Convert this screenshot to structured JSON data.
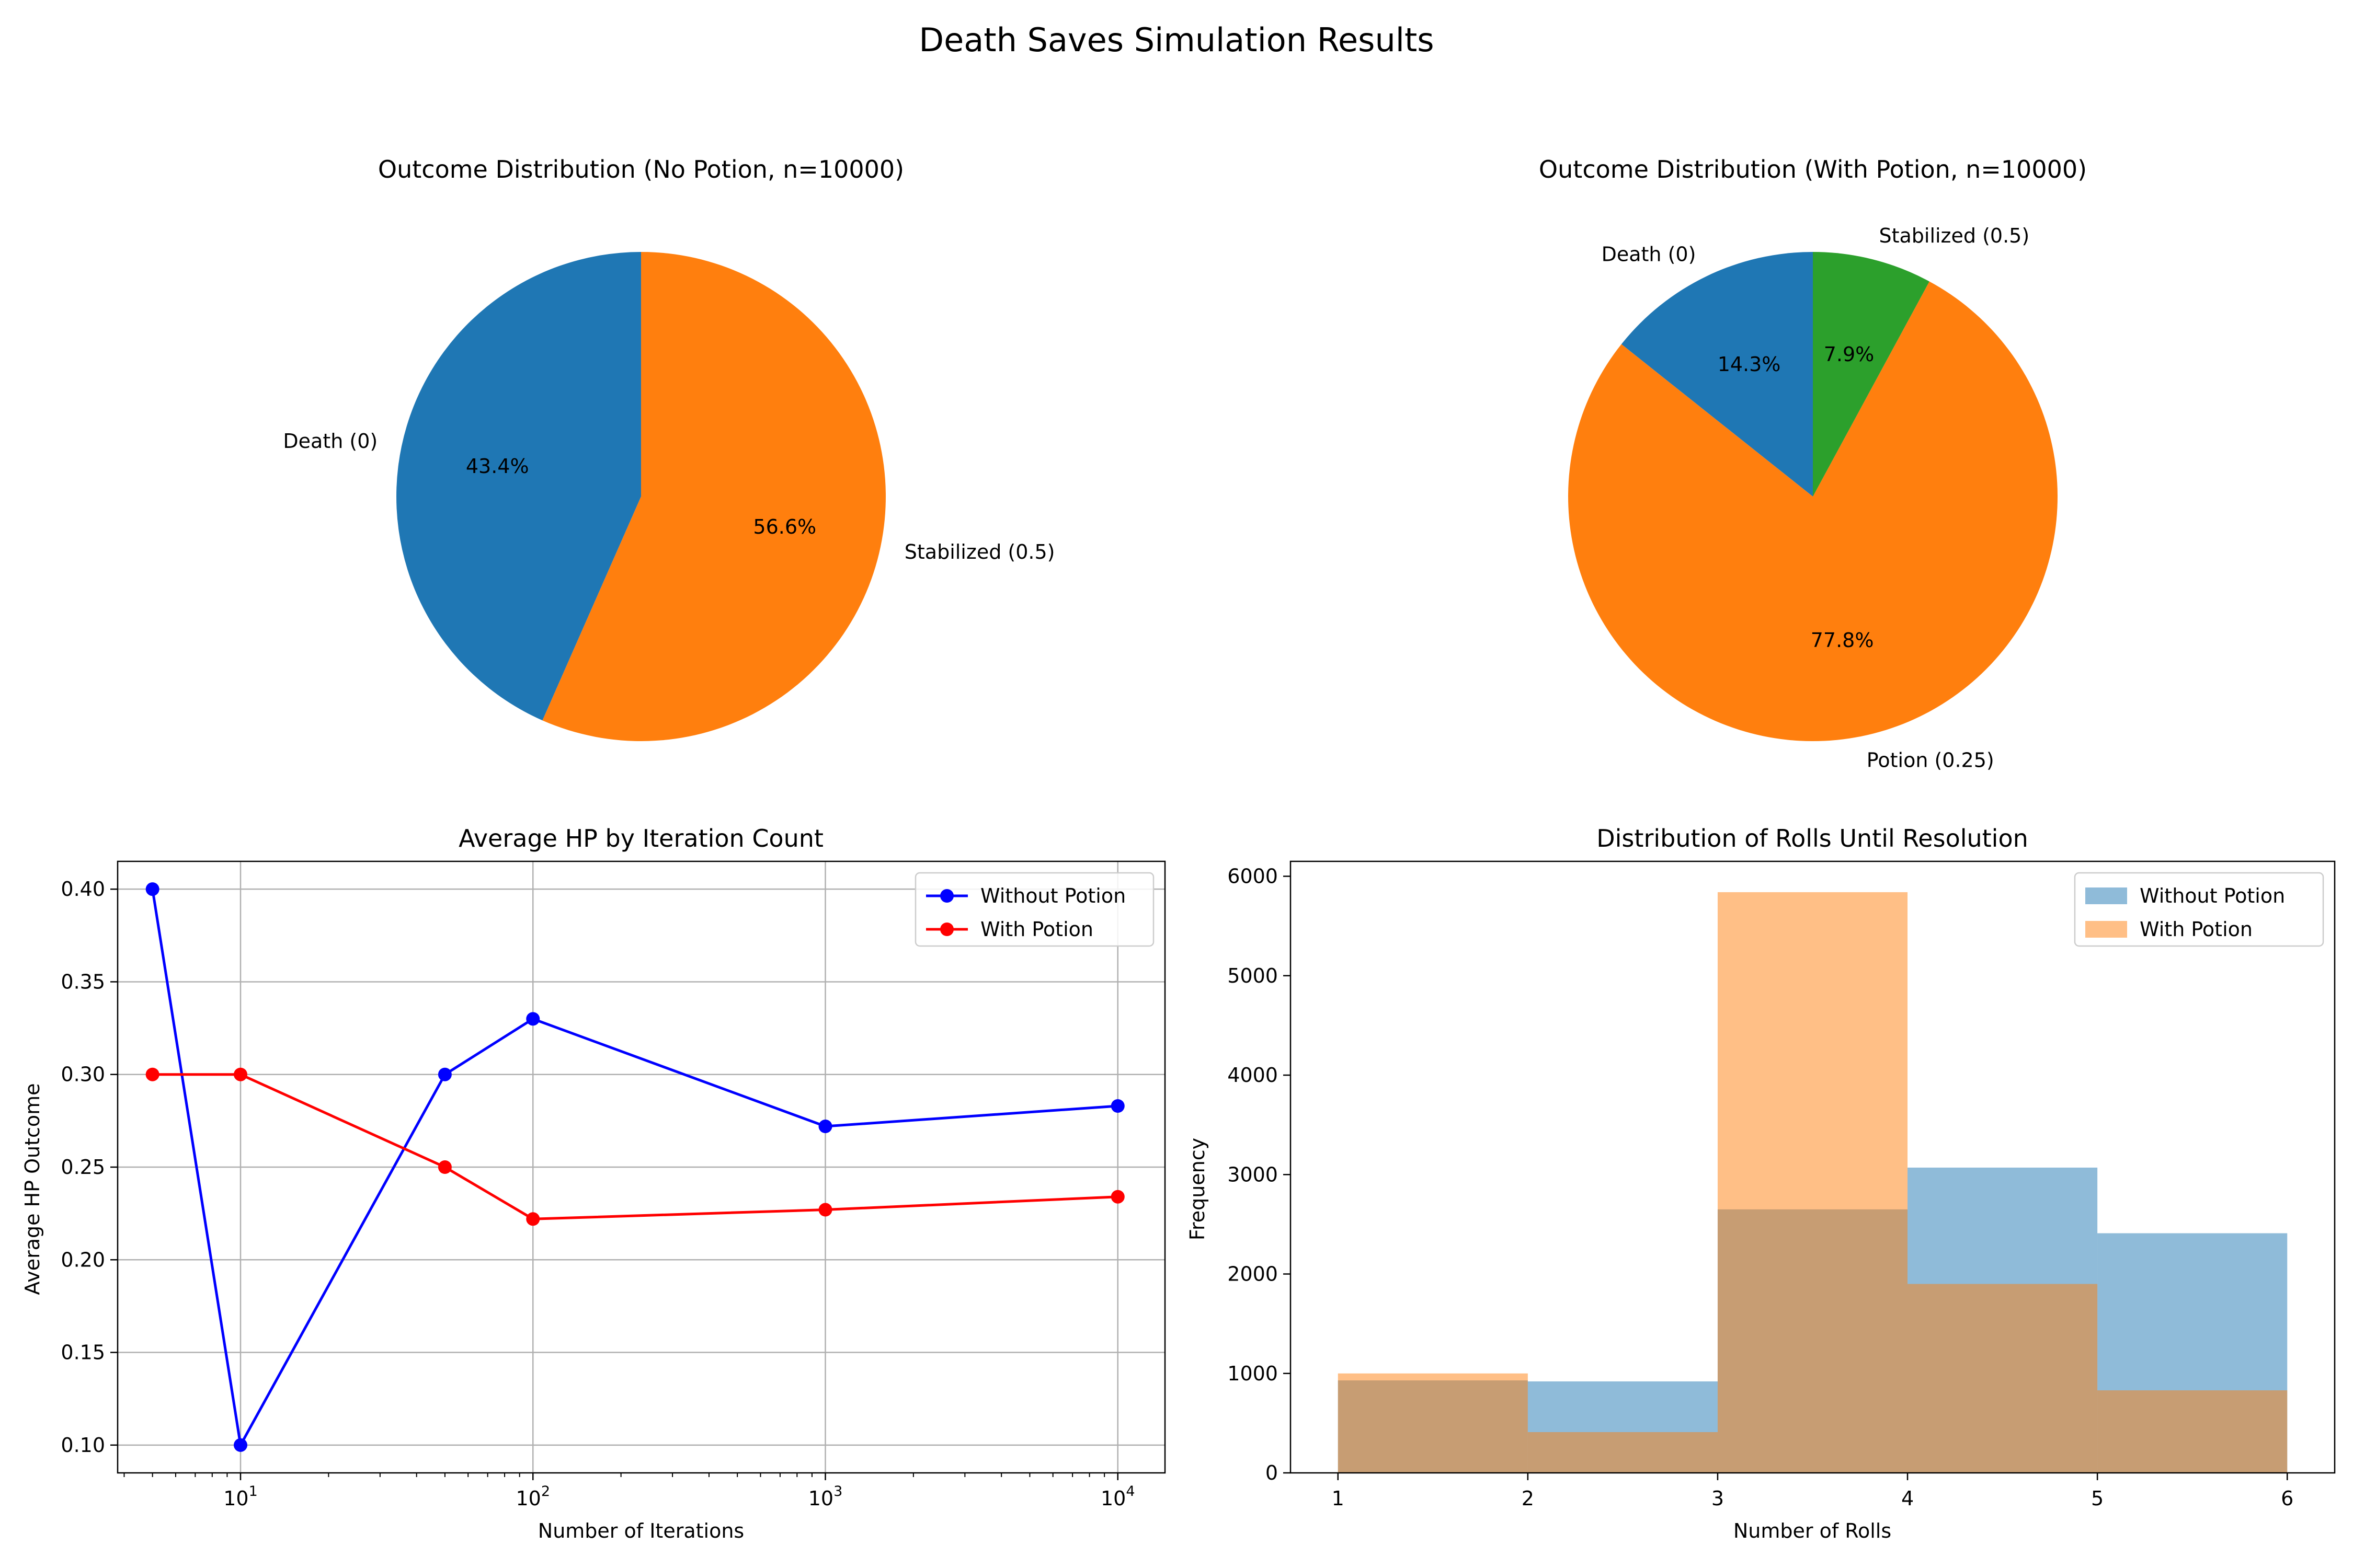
{
  "figure": {
    "title": "Death Saves Simulation Results"
  },
  "chart_data": [
    {
      "type": "pie",
      "title": "Outcome Distribution (No Potion, n=10000)",
      "labels": [
        "Death (0)",
        "Stabilized (0.5)"
      ],
      "values": [
        43.4,
        56.6
      ],
      "pct_labels": [
        "43.4%",
        "56.6%"
      ],
      "colors": [
        "#1f77b4",
        "#ff7f0e"
      ],
      "start_angle_deg": 90,
      "direction": "counterclockwise"
    },
    {
      "type": "pie",
      "title": "Outcome Distribution (With Potion, n=10000)",
      "labels": [
        "Death (0)",
        "Potion (0.25)",
        "Stabilized (0.5)"
      ],
      "values": [
        14.3,
        77.8,
        7.9
      ],
      "pct_labels": [
        "14.3%",
        "77.8%",
        "7.9%"
      ],
      "colors": [
        "#1f77b4",
        "#ff7f0e",
        "#2ca02c"
      ],
      "start_angle_deg": 90,
      "direction": "counterclockwise"
    },
    {
      "type": "line",
      "title": "Average HP by Iteration Count",
      "xlabel": "Number of Iterations",
      "ylabel": "Average HP Outcome",
      "xscale": "log",
      "xlim": [
        3.8,
        14500
      ],
      "ylim": [
        0.085,
        0.415
      ],
      "xticks": [
        10,
        100,
        1000,
        10000
      ],
      "xtick_labels": [
        {
          "base": "10",
          "exp": "1"
        },
        {
          "base": "10",
          "exp": "2"
        },
        {
          "base": "10",
          "exp": "3"
        },
        {
          "base": "10",
          "exp": "4"
        }
      ],
      "yticks": [
        0.1,
        0.15,
        0.2,
        0.25,
        0.3,
        0.35,
        0.4
      ],
      "ytick_labels": [
        "0.10",
        "0.15",
        "0.20",
        "0.25",
        "0.30",
        "0.35",
        "0.40"
      ],
      "grid": true,
      "legend": "top-right",
      "x": [
        5,
        10,
        50,
        100,
        1000,
        10000
      ],
      "series": [
        {
          "name": "Without Potion",
          "color": "#0000ff",
          "values": [
            0.4,
            0.1,
            0.3,
            0.33,
            0.272,
            0.283
          ]
        },
        {
          "name": "With Potion",
          "color": "#ff0000",
          "values": [
            0.3,
            0.3,
            0.25,
            0.222,
            0.227,
            0.234
          ]
        }
      ]
    },
    {
      "type": "bar",
      "subtype": "histogram",
      "title": "Distribution of Rolls Until Resolution",
      "xlabel": "Number of Rolls",
      "ylabel": "Frequency",
      "xlim": [
        0.75,
        6.25
      ],
      "ylim": [
        0,
        6150
      ],
      "xticks": [
        1,
        2,
        3,
        4,
        5,
        6
      ],
      "xtick_labels": [
        "1",
        "2",
        "3",
        "4",
        "5",
        "6"
      ],
      "yticks": [
        0,
        1000,
        2000,
        3000,
        4000,
        5000,
        6000
      ],
      "ytick_labels": [
        "0",
        "1000",
        "2000",
        "3000",
        "4000",
        "5000",
        "6000"
      ],
      "grid": false,
      "legend": "top-right",
      "bin_edges": [
        1,
        2,
        3,
        4,
        5,
        6
      ],
      "series": [
        {
          "name": "Without Potion",
          "color": "#1f77b4",
          "opacity": 0.5,
          "values": [
            930,
            920,
            2650,
            3070,
            2410
          ]
        },
        {
          "name": "With Potion",
          "color": "#ff7f0e",
          "opacity": 0.5,
          "values": [
            1000,
            410,
            5840,
            1900,
            830
          ]
        }
      ]
    }
  ]
}
